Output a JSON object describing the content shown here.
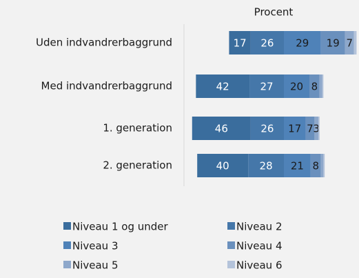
{
  "chart_data": {
    "type": "diverging-bar",
    "title": "Procent",
    "categories": [
      "Uden indvandrerbaggrund",
      "Med indvandrerbaggrund",
      "1. generation",
      "2. generation"
    ],
    "series": [
      {
        "name": "Niveau 1 og under",
        "color": "#3a6d9d",
        "values": [
          17,
          42,
          46,
          40
        ]
      },
      {
        "name": "Niveau 2",
        "color": "#4577a9",
        "values": [
          26,
          27,
          26,
          28
        ]
      },
      {
        "name": "Niveau 3",
        "color": "#4f82b8",
        "values": [
          29,
          20,
          17,
          21
        ]
      },
      {
        "name": "Niveau 4",
        "color": "#6a90bd",
        "values": [
          19,
          8,
          7,
          8
        ]
      },
      {
        "name": "Niveau 5",
        "color": "#8ea8cb",
        "values": [
          7,
          2,
          3,
          2
        ]
      },
      {
        "name": "Niveau 6",
        "color": "#b4c3da",
        "values": [
          2,
          1,
          1,
          1
        ]
      }
    ],
    "diverge_after": 2
  }
}
